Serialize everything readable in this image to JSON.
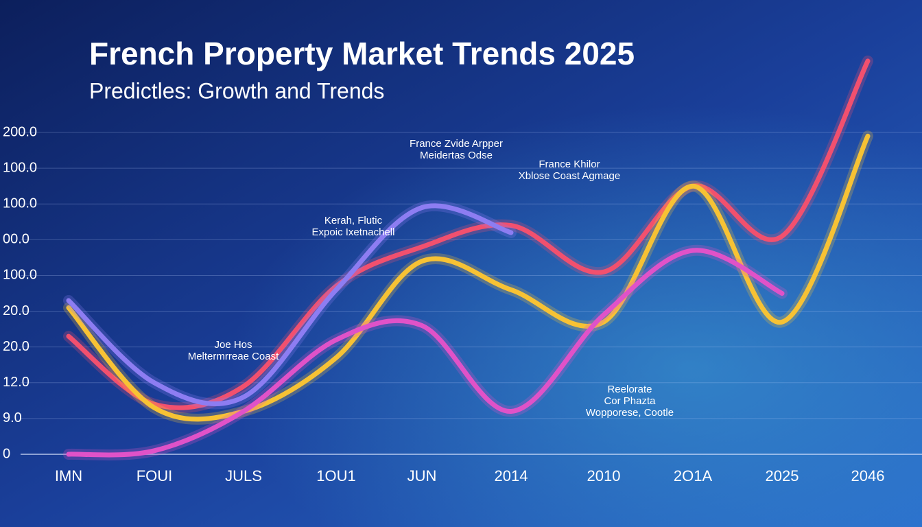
{
  "chart_data": {
    "type": "line",
    "title": "French Property Market Trends 2025",
    "subtitle": "Predictles: Growth and Trends",
    "categories": [
      "IMN",
      "FOUI",
      "JULS",
      "1OU1",
      "JUN",
      "2014",
      "2010",
      "2O1A",
      "2025",
      "2046"
    ],
    "y_axis_labels": [
      "200.0",
      "100.0",
      "100.0",
      "00.0",
      "100.0",
      "20.0",
      "20.0",
      "12.0",
      "9.0",
      "0"
    ],
    "ylim": [
      0,
      11
    ],
    "grid": true,
    "series": [
      {
        "name": "Red",
        "color": "#f2506e",
        "values": [
          3.3,
          1.4,
          1.9,
          4.7,
          5.8,
          6.4,
          5.1,
          7.5,
          6.1,
          11
        ]
      },
      {
        "name": "Yellow",
        "color": "#f7c234",
        "values": [
          4.1,
          1.3,
          1.2,
          2.7,
          5.4,
          4.6,
          3.7,
          7.5,
          3.7,
          8.9
        ]
      },
      {
        "name": "Purple",
        "color": "#8d7df2",
        "values": [
          4.3,
          2.0,
          1.6,
          4.6,
          6.9,
          6.2,
          null,
          null,
          null,
          null
        ]
      },
      {
        "name": "Pink",
        "color": "#e052c8",
        "values": [
          0,
          0.1,
          1.2,
          3.2,
          3.6,
          1.2,
          3.9,
          5.7,
          4.5,
          null
        ]
      }
    ],
    "annotations": [
      [
        "France Zvide Arpper",
        "Meidertas Odse"
      ],
      [
        "France Khilor",
        "Xblose Coast Agmage"
      ],
      [
        "Kerah, Flutic",
        "Expoic Ixetnachell"
      ],
      [
        "Joe Hos",
        "Meltermrreae Coast"
      ],
      [
        "Reelorate",
        "Cor Phazta",
        "Wopporese, Cootle"
      ]
    ]
  }
}
